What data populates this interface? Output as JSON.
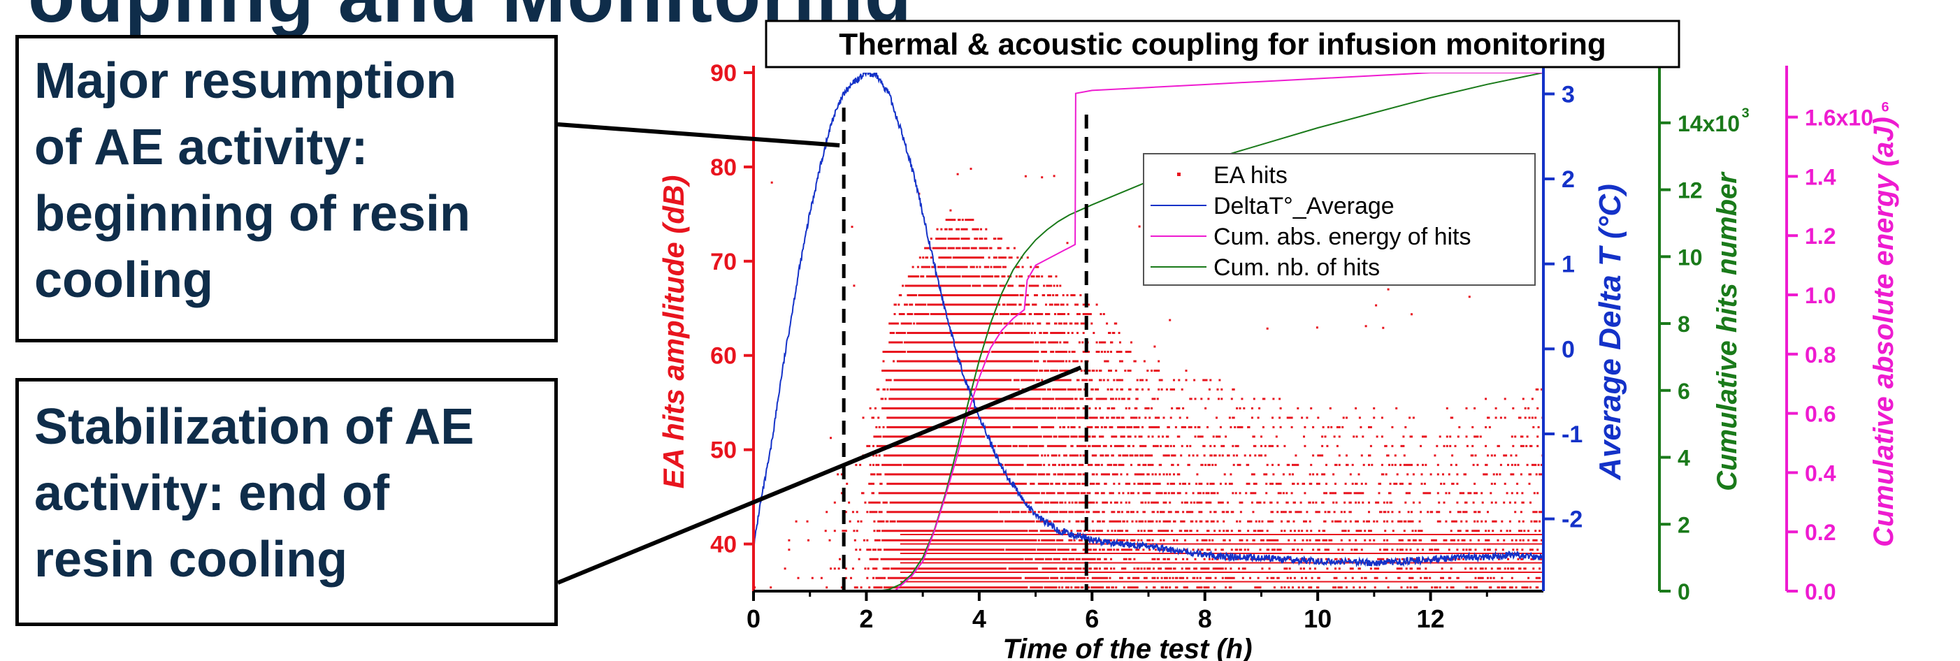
{
  "slide_heading_clipped": "oupling and Monitoring",
  "callouts": [
    {
      "lines": [
        "Major resumption",
        "of AE activity:",
        "beginning of resin",
        "cooling"
      ]
    },
    {
      "lines": [
        "Stabilization of AE",
        "activity: end of",
        "resin cooling"
      ]
    }
  ],
  "chart_data": {
    "type": "line",
    "title": "Thermal & acoustic coupling for infusion monitoring",
    "xlabel": "Time of the test (h)",
    "xlim": [
      0,
      14
    ],
    "xticks": [
      0,
      2,
      4,
      6,
      8,
      10,
      12
    ],
    "axes": {
      "amplitude": {
        "label": "EA hits amplitude (dB)",
        "range": [
          35,
          90
        ],
        "ticks": [
          40,
          50,
          60,
          70,
          80,
          90
        ],
        "tick_labels": [
          "40",
          "50",
          "60",
          "70",
          "80",
          "90"
        ],
        "color": "#e8141e",
        "side": "left"
      },
      "deltaT": {
        "label": "Average Delta T (°C)",
        "range": [
          -2.85,
          3.25
        ],
        "ticks": [
          -2,
          -1,
          0,
          1,
          2,
          3
        ],
        "tick_labels": [
          "-2",
          "-1",
          "0",
          "1",
          "2",
          "3"
        ],
        "color": "#1432c8",
        "side": "right"
      },
      "hits": {
        "label": "Cumulative hits number",
        "range": [
          0,
          15500
        ],
        "ticks": [
          0,
          2000,
          4000,
          6000,
          8000,
          10000,
          12000,
          14000
        ],
        "tick_labels": [
          "0",
          "2",
          "4",
          "6",
          "8",
          "10",
          "12",
          "14x10"
        ],
        "exponent": "3",
        "color": "#1a7a1a",
        "side": "right"
      },
      "energy": {
        "label": "Cumulative absolute energy (aJ)",
        "range": [
          0,
          1.75
        ],
        "ticks": [
          0,
          0.2,
          0.4,
          0.6,
          0.8,
          1.0,
          1.2,
          1.4,
          1.6
        ],
        "tick_labels": [
          "0.0",
          "0.2",
          "0.4",
          "0.6",
          "0.8",
          "1.0",
          "1.2",
          "1.4",
          "1.6x10"
        ],
        "exponent": "6",
        "color": "#ee1bd0",
        "side": "right"
      }
    },
    "legend": {
      "placement": "top-right",
      "entries": [
        {
          "name": "EA hits",
          "color": "#e8141e",
          "style": "dot"
        },
        {
          "name": "DeltaT°_Average",
          "color": "#1432c8",
          "style": "line"
        },
        {
          "name": "Cum. abs. energy of hits",
          "color": "#ee1bd0",
          "style": "line"
        },
        {
          "name": "Cum. nb. of hits",
          "color": "#1a7a1a",
          "style": "line"
        }
      ]
    },
    "series": [
      {
        "name": "DeltaT°_Average",
        "axis": "deltaT",
        "x": [
          0,
          0.1,
          0.3,
          0.5,
          0.8,
          1.0,
          1.2,
          1.4,
          1.6,
          1.8,
          2.0,
          2.2,
          2.4,
          2.6,
          2.8,
          3.0,
          3.2,
          3.4,
          3.6,
          3.8,
          4.0,
          4.2,
          4.4,
          4.6,
          4.8,
          5.0,
          5.2,
          5.4,
          5.6,
          5.8,
          6.0,
          6.5,
          7.0,
          7.5,
          8.0,
          8.5,
          9.0,
          9.5,
          10.0,
          10.5,
          11.0,
          11.5,
          12.0,
          12.5,
          13.0,
          13.5,
          14.0
        ],
        "y": [
          -2.35,
          -1.9,
          -1.2,
          -0.3,
          0.9,
          1.6,
          2.2,
          2.7,
          3.0,
          3.15,
          3.25,
          3.2,
          3.0,
          2.6,
          2.15,
          1.6,
          1.0,
          0.45,
          -0.05,
          -0.45,
          -0.8,
          -1.1,
          -1.4,
          -1.6,
          -1.8,
          -1.95,
          -2.05,
          -2.13,
          -2.18,
          -2.2,
          -2.25,
          -2.3,
          -2.32,
          -2.38,
          -2.42,
          -2.45,
          -2.45,
          -2.48,
          -2.5,
          -2.5,
          -2.52,
          -2.5,
          -2.48,
          -2.45,
          -2.45,
          -2.42,
          -2.45
        ]
      },
      {
        "name": "Cum. nb. of hits",
        "axis": "hits",
        "x": [
          0,
          2.2,
          2.4,
          2.6,
          2.8,
          3.0,
          3.2,
          3.4,
          3.6,
          3.8,
          4.0,
          4.2,
          4.4,
          4.6,
          4.8,
          5.0,
          5.2,
          5.4,
          5.6,
          5.8,
          6.0,
          6.5,
          7.0,
          7.5,
          8.0,
          9.0,
          10.0,
          11.0,
          12.0,
          13.0,
          14.0
        ],
        "y": [
          0,
          0,
          50,
          200,
          500,
          1000,
          1800,
          2900,
          4200,
          5600,
          6900,
          8000,
          8900,
          9600,
          10100,
          10500,
          10800,
          11050,
          11250,
          11400,
          11550,
          11900,
          12250,
          12550,
          12850,
          13350,
          13850,
          14300,
          14750,
          15150,
          15500
        ]
      },
      {
        "name": "Cum. abs. energy of hits",
        "axis": "energy",
        "x": [
          0,
          2.5,
          2.8,
          3.0,
          3.2,
          3.4,
          3.6,
          3.8,
          4.0,
          4.2,
          4.4,
          4.6,
          4.8,
          4.85,
          5.0,
          5.2,
          5.4,
          5.6,
          5.7,
          5.71,
          6.0,
          7.0,
          8.0,
          9.0,
          10.0,
          11.0,
          12.0,
          13.0,
          14.0
        ],
        "y": [
          0,
          0,
          0.05,
          0.1,
          0.2,
          0.32,
          0.45,
          0.6,
          0.72,
          0.82,
          0.88,
          0.92,
          0.95,
          1.05,
          1.1,
          1.12,
          1.14,
          1.16,
          1.17,
          1.68,
          1.69,
          1.7,
          1.71,
          1.72,
          1.73,
          1.74,
          1.75,
          1.75,
          1.75
        ]
      },
      {
        "name": "EA hits",
        "axis": "amplitude",
        "type": "scatter",
        "note_hidden": true,
        "density_profile": {
          "x": [
            0,
            0.5,
            1.0,
            1.5,
            2.0,
            2.5,
            3.0,
            3.5,
            4.0,
            4.5,
            5.0,
            5.5,
            6.0,
            7.0,
            8.0,
            9.0,
            10.0,
            11.0,
            12.0,
            13.0,
            14.0
          ],
          "upper_amplitude": [
            40,
            42,
            45,
            48,
            55,
            66,
            72,
            76,
            74,
            72,
            70,
            68,
            66,
            60,
            58,
            56,
            55,
            55,
            54,
            56,
            58
          ],
          "relative_density": [
            0.02,
            0.02,
            0.03,
            0.05,
            0.15,
            0.9,
            1.0,
            1.0,
            0.95,
            0.8,
            0.65,
            0.5,
            0.4,
            0.3,
            0.25,
            0.22,
            0.2,
            0.2,
            0.2,
            0.2,
            0.2
          ]
        }
      }
    ],
    "annotations": [
      {
        "type": "vline",
        "x": 1.6,
        "style": "dashed",
        "color": "#000000"
      },
      {
        "type": "vline",
        "x": 5.9,
        "style": "dashed",
        "color": "#000000"
      }
    ]
  }
}
